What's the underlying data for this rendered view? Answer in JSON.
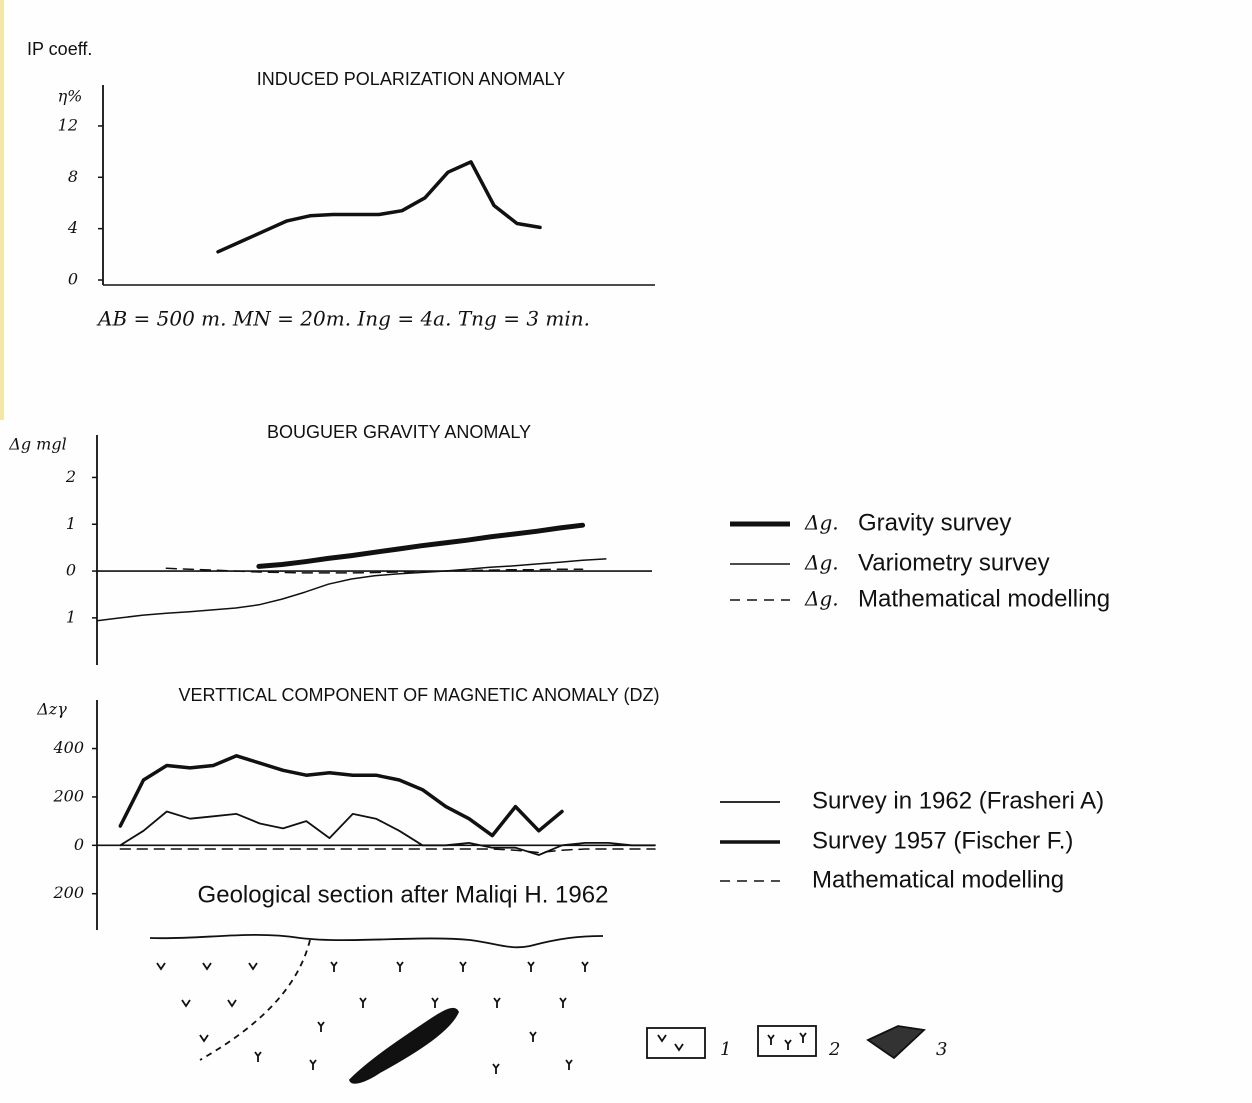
{
  "corner_label": "IP coeff.",
  "chart_data": [
    {
      "type": "line",
      "title": "INDUCED POLARIZATION ANOMALY",
      "y_label": "η%",
      "annotation": "AB = 500 m.   MN = 20m.  Ing = 4a.  Tng = 3 min.",
      "categories": [
        null,
        null,
        null,
        null,
        null,
        null,
        null,
        null,
        null,
        null,
        null,
        null,
        null,
        null,
        null,
        null,
        null,
        null,
        null,
        null,
        null,
        null,
        null,
        null,
        null
      ],
      "values": [
        null,
        null,
        null,
        null,
        null,
        2.2,
        3.0,
        3.8,
        4.6,
        5.0,
        5.1,
        5.1,
        5.1,
        5.4,
        6.4,
        8.4,
        9.2,
        5.8,
        4.4,
        4.1,
        null,
        null,
        null,
        null,
        null
      ],
      "color": "#111111",
      "line_width": 3.5,
      "ylim": [
        0,
        14.8
      ],
      "yticks": [
        0,
        4,
        8,
        12
      ]
    },
    {
      "type": "line",
      "title": "BOUGUER GRAVITY ANOMALY",
      "y_label": "Δg mgl",
      "legend": "right",
      "legend_symbol": "Δg.",
      "categories": [
        null,
        null,
        null,
        null,
        null,
        null,
        null,
        null,
        null,
        null,
        null,
        null,
        null,
        null,
        null,
        null,
        null,
        null,
        null,
        null,
        null,
        null,
        null,
        null,
        null
      ],
      "series": [
        {
          "name": "Gravity survey",
          "color": "#111111",
          "line_width": 5,
          "dash": "solid",
          "values": [
            null,
            null,
            null,
            null,
            null,
            null,
            null,
            0.1,
            0.14,
            0.2,
            0.27,
            0.33,
            0.4,
            0.47,
            0.54,
            0.6,
            0.66,
            0.73,
            0.79,
            0.85,
            0.92,
            0.98,
            null,
            null,
            null
          ]
        },
        {
          "name": "Variometry survey",
          "color": "#111111",
          "line_width": 1.5,
          "dash": "solid",
          "values": [
            -1.06,
            -1.0,
            -0.94,
            -0.9,
            -0.87,
            -0.83,
            -0.79,
            -0.72,
            -0.6,
            -0.45,
            -0.28,
            -0.17,
            -0.1,
            -0.06,
            -0.03,
            0,
            0.04,
            0.08,
            0.11,
            0.15,
            0.19,
            0.23,
            0.26,
            null,
            null
          ]
        },
        {
          "name": "Mathematical modelling",
          "color": "#111111",
          "line_width": 1.5,
          "dash": "dashed",
          "values": [
            null,
            null,
            null,
            0.06,
            0.04,
            0.02,
            0,
            -0.02,
            -0.03,
            -0.04,
            -0.04,
            -0.04,
            -0.03,
            -0.02,
            -0.01,
            0,
            0.01,
            0.02,
            0.03,
            0.03,
            0.04,
            0.04,
            null,
            null,
            null
          ]
        }
      ],
      "ylim": [
        -1.9,
        2.8
      ],
      "yticks": [
        {
          "value": -1,
          "label": "1"
        },
        0,
        1,
        2
      ]
    },
    {
      "type": "line",
      "title": "VERTTICAL COMPONENT OF MAGNETIC ANOMALY (DZ)",
      "y_label": "Δzγ",
      "legend": "right",
      "categories": [
        null,
        null,
        null,
        null,
        null,
        null,
        null,
        null,
        null,
        null,
        null,
        null,
        null,
        null,
        null,
        null,
        null,
        null,
        null,
        null,
        null,
        null,
        null,
        null,
        null
      ],
      "series": [
        {
          "name": "Survey in 1962 (Frasheri A)",
          "color": "#111111",
          "line_width": 1.8,
          "dash": "solid",
          "values": [
            null,
            0,
            60,
            140,
            110,
            120,
            130,
            90,
            70,
            100,
            30,
            130,
            110,
            60,
            0,
            0,
            10,
            -10,
            -10,
            -40,
            0,
            10,
            10,
            0,
            0
          ]
        },
        {
          "name": "Survey 1957 (Fischer F.)",
          "color": "#111111",
          "line_width": 3.5,
          "dash": "solid",
          "values": [
            null,
            80,
            270,
            330,
            320,
            330,
            370,
            340,
            310,
            290,
            300,
            290,
            290,
            270,
            230,
            160,
            110,
            40,
            160,
            60,
            140,
            null,
            null,
            null,
            null
          ]
        },
        {
          "name": "Mathematical modelling",
          "color": "#111111",
          "line_width": 1.5,
          "dash": "dashed",
          "values": [
            null,
            -15,
            -15,
            -15,
            -15,
            -15,
            -15,
            -15,
            -15,
            -15,
            -15,
            -15,
            -15,
            -15,
            -15,
            -15,
            -15,
            -15,
            -20,
            -30,
            -20,
            -15,
            -15,
            -15,
            -15
          ]
        }
      ],
      "ylim": [
        -350,
        580
      ],
      "yticks": [
        {
          "value": -200,
          "label": "200"
        },
        0,
        200,
        400
      ]
    }
  ],
  "geological_section": {
    "title": "Geological section after Maliqi H. 1962",
    "legend": [
      "1",
      "2",
      "3"
    ]
  }
}
